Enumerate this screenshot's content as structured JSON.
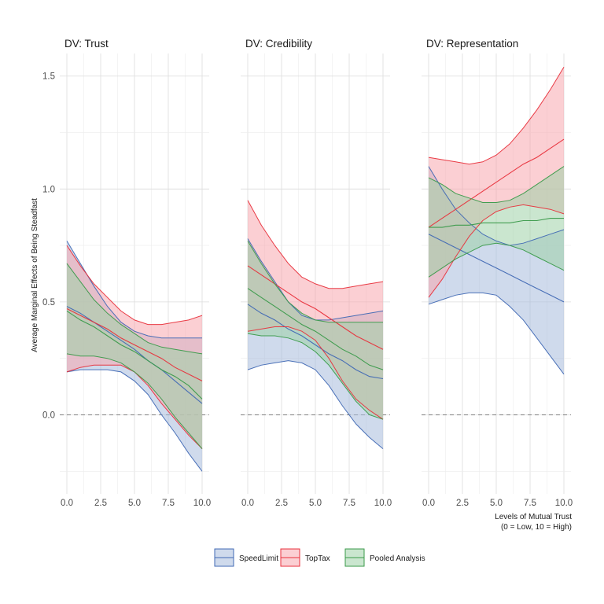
{
  "chart_data": {
    "type": "area",
    "ylabel": "Average Marginal Effects of Being Steadfast",
    "xlabel_line1": "Levels of Mutual Trust",
    "xlabel_line2": "(0 = Low, 10 = High)",
    "xlim": [
      0,
      10
    ],
    "ylim": [
      -0.35,
      1.6
    ],
    "x_ticks": [
      0,
      2.5,
      5,
      7.5,
      10
    ],
    "x_tick_labels": [
      "0.0",
      "2.5",
      "5.0",
      "7.5",
      "10.0"
    ],
    "y_ticks": [
      0,
      0.5,
      1.0,
      1.5
    ],
    "y_tick_labels": [
      "0.0",
      "0.5",
      "1.0",
      "1.5"
    ],
    "reference_line": 0,
    "grid": true,
    "legend_position": "bottom",
    "legend": [
      "SpeedLimit",
      "TopTax",
      "Pooled Analysis"
    ],
    "colors": {
      "SpeedLimit": "#4169b4",
      "TopTax": "#e8323c",
      "Pooled Analysis": "#3a9a4a"
    },
    "fill_colors": {
      "SpeedLimit": "#a7bcdc",
      "TopTax": "#f7a8ae",
      "Pooled Analysis": "#9fd1a7"
    },
    "x": [
      0,
      1,
      2,
      3,
      4,
      5,
      6,
      7,
      8,
      9,
      10
    ],
    "panels": [
      {
        "title": "DV: Trust",
        "series": [
          {
            "name": "SpeedLimit",
            "estimate": [
              0.48,
              0.45,
              0.41,
              0.37,
              0.33,
              0.29,
              0.24,
              0.2,
              0.15,
              0.1,
              0.05
            ],
            "upper": [
              0.77,
              0.67,
              0.57,
              0.48,
              0.41,
              0.37,
              0.35,
              0.34,
              0.34,
              0.34,
              0.34
            ],
            "lower": [
              0.19,
              0.2,
              0.2,
              0.2,
              0.19,
              0.15,
              0.09,
              0.0,
              -0.08,
              -0.17,
              -0.25
            ]
          },
          {
            "name": "TopTax",
            "estimate": [
              0.47,
              0.44,
              0.41,
              0.38,
              0.34,
              0.31,
              0.28,
              0.25,
              0.21,
              0.18,
              0.15
            ],
            "upper": [
              0.75,
              0.66,
              0.58,
              0.52,
              0.46,
              0.42,
              0.4,
              0.4,
              0.41,
              0.42,
              0.44
            ],
            "lower": [
              0.19,
              0.21,
              0.22,
              0.22,
              0.22,
              0.19,
              0.13,
              0.05,
              -0.02,
              -0.09,
              -0.15
            ]
          },
          {
            "name": "Pooled Analysis",
            "estimate": [
              0.46,
              0.42,
              0.39,
              0.35,
              0.31,
              0.28,
              0.24,
              0.2,
              0.17,
              0.13,
              0.07
            ],
            "upper": [
              0.67,
              0.59,
              0.51,
              0.45,
              0.4,
              0.36,
              0.32,
              0.3,
              0.29,
              0.28,
              0.27
            ],
            "lower": [
              0.27,
              0.26,
              0.26,
              0.25,
              0.23,
              0.19,
              0.14,
              0.07,
              -0.01,
              -0.08,
              -0.15
            ]
          }
        ]
      },
      {
        "title": "DV: Credibility",
        "series": [
          {
            "name": "SpeedLimit",
            "estimate": [
              0.49,
              0.45,
              0.42,
              0.38,
              0.35,
              0.31,
              0.27,
              0.24,
              0.2,
              0.17,
              0.16
            ],
            "upper": [
              0.78,
              0.68,
              0.59,
              0.5,
              0.44,
              0.42,
              0.42,
              0.43,
              0.44,
              0.45,
              0.46
            ],
            "lower": [
              0.2,
              0.22,
              0.23,
              0.24,
              0.23,
              0.2,
              0.13,
              0.04,
              -0.04,
              -0.1,
              -0.15
            ]
          },
          {
            "name": "TopTax",
            "estimate": [
              0.66,
              0.62,
              0.58,
              0.54,
              0.5,
              0.47,
              0.43,
              0.39,
              0.35,
              0.32,
              0.29
            ],
            "upper": [
              0.95,
              0.84,
              0.75,
              0.67,
              0.61,
              0.58,
              0.56,
              0.56,
              0.57,
              0.58,
              0.59
            ],
            "lower": [
              0.37,
              0.38,
              0.39,
              0.39,
              0.37,
              0.33,
              0.25,
              0.15,
              0.07,
              0.02,
              -0.02
            ]
          },
          {
            "name": "Pooled Analysis",
            "estimate": [
              0.56,
              0.52,
              0.48,
              0.44,
              0.4,
              0.37,
              0.33,
              0.29,
              0.26,
              0.22,
              0.2
            ],
            "upper": [
              0.77,
              0.67,
              0.58,
              0.5,
              0.45,
              0.42,
              0.41,
              0.41,
              0.41,
              0.41,
              0.41
            ],
            "lower": [
              0.36,
              0.35,
              0.35,
              0.34,
              0.32,
              0.28,
              0.22,
              0.14,
              0.06,
              0.0,
              -0.02
            ]
          }
        ]
      },
      {
        "title": "DV: Representation",
        "series": [
          {
            "name": "SpeedLimit",
            "estimate": [
              0.8,
              0.77,
              0.74,
              0.71,
              0.68,
              0.65,
              0.62,
              0.59,
              0.56,
              0.53,
              0.5
            ],
            "upper": [
              1.1,
              1.0,
              0.91,
              0.85,
              0.8,
              0.77,
              0.75,
              0.76,
              0.78,
              0.8,
              0.82
            ],
            "lower": [
              0.49,
              0.51,
              0.53,
              0.54,
              0.54,
              0.53,
              0.48,
              0.42,
              0.34,
              0.26,
              0.18
            ]
          },
          {
            "name": "TopTax",
            "estimate": [
              0.83,
              0.87,
              0.91,
              0.95,
              0.99,
              1.03,
              1.07,
              1.11,
              1.14,
              1.18,
              1.22
            ],
            "upper": [
              1.14,
              1.13,
              1.12,
              1.11,
              1.12,
              1.15,
              1.2,
              1.27,
              1.35,
              1.44,
              1.54
            ],
            "lower": [
              0.52,
              0.6,
              0.7,
              0.79,
              0.86,
              0.9,
              0.92,
              0.93,
              0.92,
              0.91,
              0.89
            ]
          },
          {
            "name": "Pooled Analysis",
            "estimate": [
              0.83,
              0.83,
              0.84,
              0.84,
              0.85,
              0.85,
              0.85,
              0.86,
              0.86,
              0.87,
              0.87
            ],
            "upper": [
              1.05,
              1.02,
              0.98,
              0.96,
              0.94,
              0.94,
              0.95,
              0.98,
              1.02,
              1.06,
              1.1
            ],
            "lower": [
              0.61,
              0.65,
              0.69,
              0.72,
              0.75,
              0.76,
              0.75,
              0.73,
              0.7,
              0.67,
              0.64
            ]
          }
        ]
      }
    ]
  }
}
